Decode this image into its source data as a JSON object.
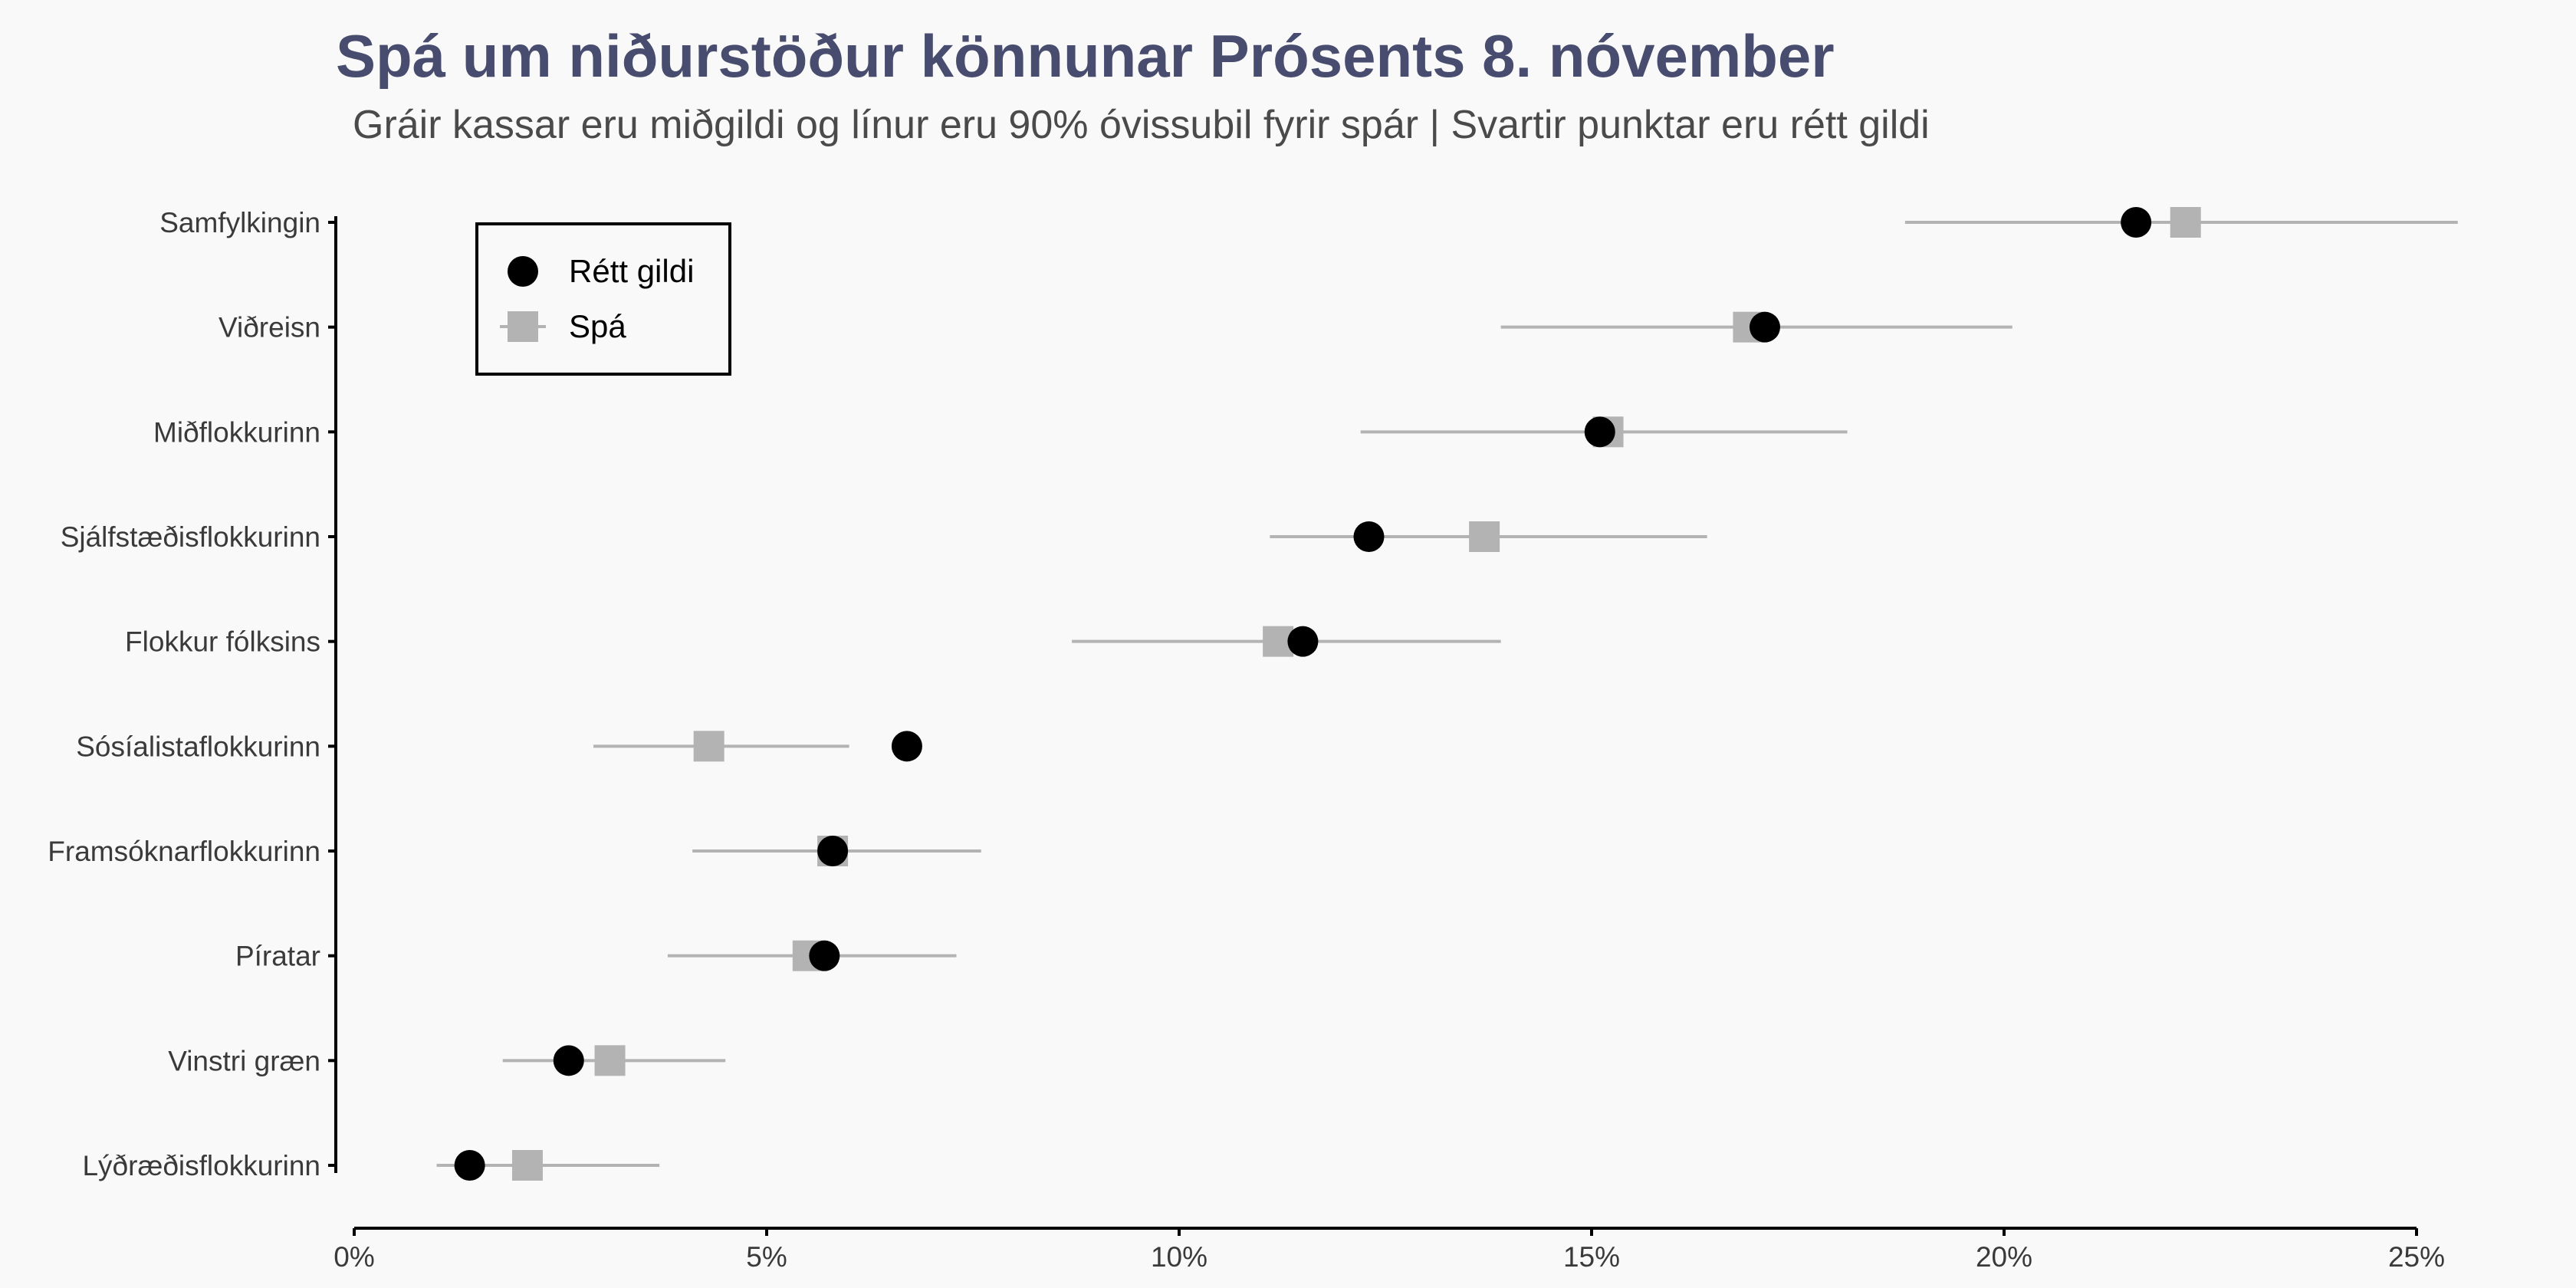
{
  "chart_data": {
    "type": "scatter",
    "title": "Spá um niðurstöður könnunar Prósents 8. nóvember",
    "subtitle": "Gráir kassar eru miðgildi og línur eru 90% óvissubil fyrir spár | Svartir punktar eru rétt gildi",
    "xlabel": "",
    "ylabel": "",
    "xlim": [
      0,
      25
    ],
    "xticks": [
      0,
      5,
      10,
      15,
      20,
      25
    ],
    "xtick_labels": [
      "0%",
      "5%",
      "10%",
      "15%",
      "20%",
      "25%"
    ],
    "legend": {
      "placement": "top-left",
      "entries": [
        {
          "label": "Rétt gildi",
          "shape": "circle"
        },
        {
          "label": "Spá",
          "shape": "square"
        }
      ]
    },
    "colors": {
      "actual": "#000000",
      "forecast": "#b3b3b3",
      "interval": "#b3b3b3",
      "title": "#484c6e"
    },
    "categories": [
      "Samfylkingin",
      "Viðreisn",
      "Miðflokkurinn",
      "Sjálfstæðisflokkurinn",
      "Flokkur fólksins",
      "Sósíalistaflokkurinn",
      "Framsóknarflokkurinn",
      "Píratar",
      "Vinstri græn",
      "Lýðræðisflokkurinn"
    ],
    "series": [
      {
        "name": "Rétt gildi",
        "values": [
          21.6,
          17.1,
          15.1,
          12.3,
          11.5,
          6.7,
          5.8,
          5.7,
          2.6,
          1.4
        ]
      },
      {
        "name": "Spá",
        "values": [
          22.2,
          16.9,
          15.2,
          13.7,
          11.2,
          4.3,
          5.8,
          5.5,
          3.1,
          2.1
        ]
      }
    ],
    "intervals": [
      {
        "lower": 18.8,
        "upper": 25.5
      },
      {
        "lower": 13.9,
        "upper": 20.1
      },
      {
        "lower": 12.2,
        "upper": 18.1
      },
      {
        "lower": 11.1,
        "upper": 16.4
      },
      {
        "lower": 8.7,
        "upper": 13.9
      },
      {
        "lower": 2.9,
        "upper": 6.0
      },
      {
        "lower": 4.1,
        "upper": 7.6
      },
      {
        "lower": 3.8,
        "upper": 7.3
      },
      {
        "lower": 1.8,
        "upper": 4.5
      },
      {
        "lower": 1.0,
        "upper": 3.7
      }
    ]
  }
}
